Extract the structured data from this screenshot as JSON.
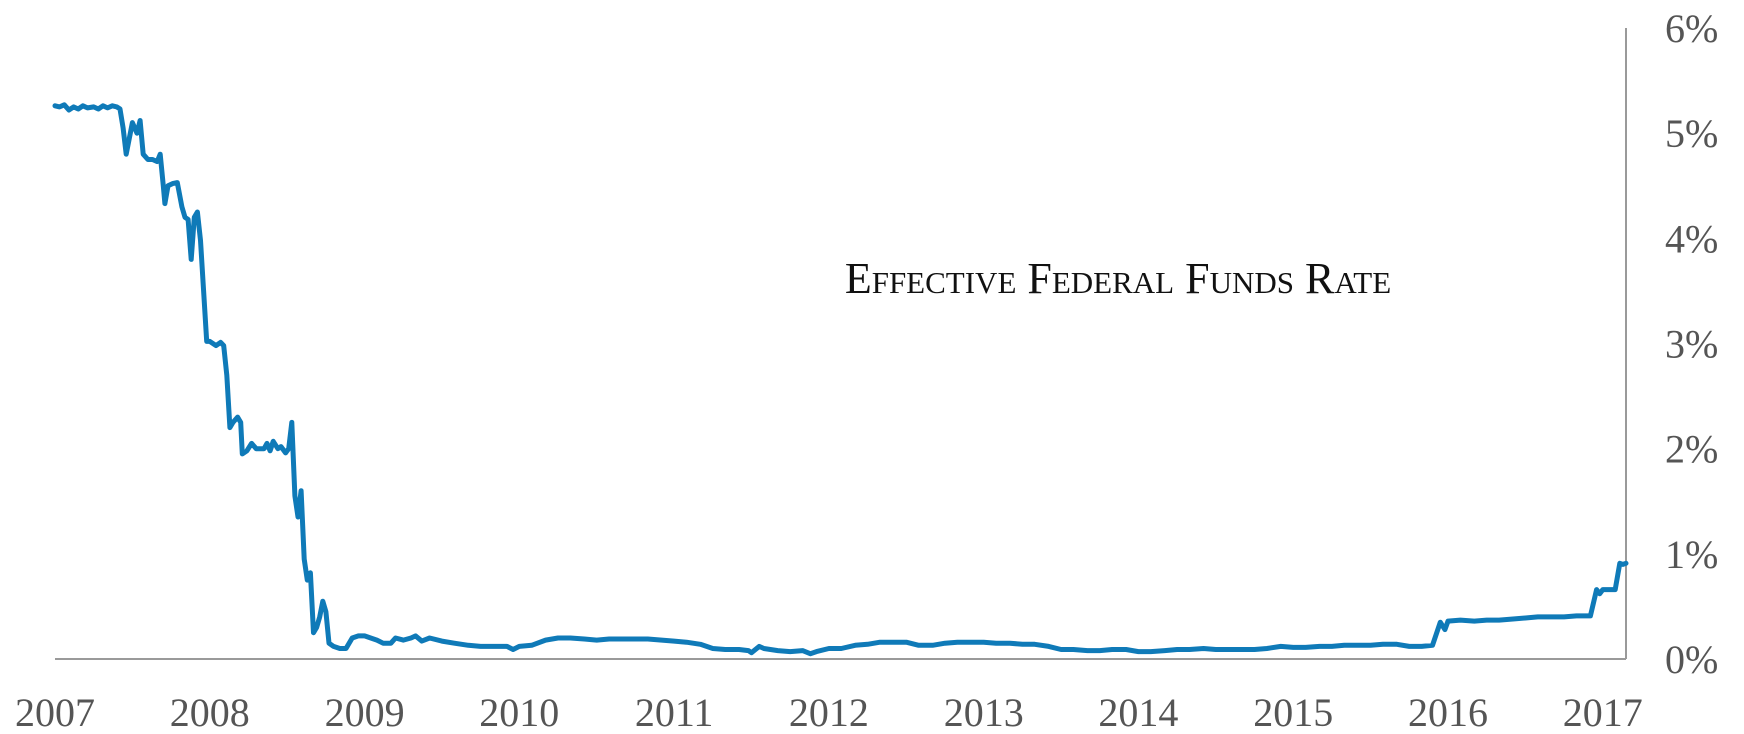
{
  "chart_data": {
    "type": "line",
    "title": "Effective Federal Funds Rate",
    "xlabel": "",
    "ylabel": "",
    "x_ticks": [
      "2007",
      "2008",
      "2009",
      "2010",
      "2011",
      "2012",
      "2013",
      "2014",
      "2015",
      "2016",
      "2017"
    ],
    "y_ticks": [
      "0%",
      "1%",
      "2%",
      "3%",
      "4%",
      "5%",
      "6%"
    ],
    "xlim": [
      2007.0,
      2017.15
    ],
    "ylim": [
      0,
      6
    ],
    "y_axis_side": "right",
    "grid": false,
    "legend": "none",
    "series": [
      {
        "color": "#0f7ab8",
        "points": [
          [
            2007.0,
            5.26
          ],
          [
            2007.03,
            5.25
          ],
          [
            2007.06,
            5.27
          ],
          [
            2007.09,
            5.22
          ],
          [
            2007.12,
            5.25
          ],
          [
            2007.15,
            5.23
          ],
          [
            2007.18,
            5.26
          ],
          [
            2007.21,
            5.24
          ],
          [
            2007.25,
            5.25
          ],
          [
            2007.28,
            5.23
          ],
          [
            2007.31,
            5.26
          ],
          [
            2007.34,
            5.24
          ],
          [
            2007.37,
            5.26
          ],
          [
            2007.4,
            5.25
          ],
          [
            2007.42,
            5.23
          ],
          [
            2007.44,
            5.05
          ],
          [
            2007.46,
            4.8
          ],
          [
            2007.48,
            4.95
          ],
          [
            2007.5,
            5.1
          ],
          [
            2007.53,
            5.0
          ],
          [
            2007.55,
            5.12
          ],
          [
            2007.57,
            4.8
          ],
          [
            2007.6,
            4.75
          ],
          [
            2007.63,
            4.75
          ],
          [
            2007.66,
            4.73
          ],
          [
            2007.68,
            4.8
          ],
          [
            2007.7,
            4.5
          ],
          [
            2007.71,
            4.33
          ],
          [
            2007.73,
            4.5
          ],
          [
            2007.76,
            4.52
          ],
          [
            2007.79,
            4.53
          ],
          [
            2007.82,
            4.3
          ],
          [
            2007.84,
            4.2
          ],
          [
            2007.86,
            4.18
          ],
          [
            2007.88,
            3.8
          ],
          [
            2007.9,
            4.2
          ],
          [
            2007.92,
            4.25
          ],
          [
            2007.94,
            3.98
          ],
          [
            2007.96,
            3.5
          ],
          [
            2007.98,
            3.02
          ],
          [
            2008.0,
            3.02
          ],
          [
            2008.04,
            2.98
          ],
          [
            2008.07,
            3.01
          ],
          [
            2008.09,
            2.98
          ],
          [
            2008.11,
            2.7
          ],
          [
            2008.13,
            2.2
          ],
          [
            2008.15,
            2.25
          ],
          [
            2008.18,
            2.3
          ],
          [
            2008.2,
            2.25
          ],
          [
            2008.21,
            1.95
          ],
          [
            2008.24,
            1.98
          ],
          [
            2008.27,
            2.05
          ],
          [
            2008.3,
            2.0
          ],
          [
            2008.33,
            2.0
          ],
          [
            2008.35,
            2.0
          ],
          [
            2008.37,
            2.05
          ],
          [
            2008.39,
            1.98
          ],
          [
            2008.41,
            2.07
          ],
          [
            2008.44,
            2.0
          ],
          [
            2008.46,
            2.02
          ],
          [
            2008.49,
            1.96
          ],
          [
            2008.51,
            2.0
          ],
          [
            2008.53,
            2.25
          ],
          [
            2008.55,
            1.55
          ],
          [
            2008.57,
            1.35
          ],
          [
            2008.59,
            1.6
          ],
          [
            2008.61,
            0.95
          ],
          [
            2008.63,
            0.75
          ],
          [
            2008.65,
            0.82
          ],
          [
            2008.67,
            0.25
          ],
          [
            2008.69,
            0.3
          ],
          [
            2008.71,
            0.4
          ],
          [
            2008.73,
            0.55
          ],
          [
            2008.75,
            0.45
          ],
          [
            2008.77,
            0.15
          ],
          [
            2008.8,
            0.12
          ],
          [
            2008.84,
            0.1
          ],
          [
            2008.88,
            0.1
          ],
          [
            2008.92,
            0.2
          ],
          [
            2008.96,
            0.22
          ],
          [
            2009.0,
            0.22
          ],
          [
            2009.04,
            0.2
          ],
          [
            2009.08,
            0.18
          ],
          [
            2009.12,
            0.15
          ],
          [
            2009.17,
            0.15
          ],
          [
            2009.2,
            0.2
          ],
          [
            2009.25,
            0.18
          ],
          [
            2009.3,
            0.2
          ],
          [
            2009.33,
            0.22
          ],
          [
            2009.37,
            0.17
          ],
          [
            2009.42,
            0.2
          ],
          [
            2009.5,
            0.17
          ],
          [
            2009.58,
            0.15
          ],
          [
            2009.67,
            0.13
          ],
          [
            2009.75,
            0.12
          ],
          [
            2009.83,
            0.12
          ],
          [
            2009.92,
            0.12
          ],
          [
            2009.96,
            0.09
          ],
          [
            2010.0,
            0.12
          ],
          [
            2010.08,
            0.13
          ],
          [
            2010.17,
            0.18
          ],
          [
            2010.25,
            0.2
          ],
          [
            2010.33,
            0.2
          ],
          [
            2010.42,
            0.19
          ],
          [
            2010.5,
            0.18
          ],
          [
            2010.58,
            0.19
          ],
          [
            2010.67,
            0.19
          ],
          [
            2010.75,
            0.19
          ],
          [
            2010.83,
            0.19
          ],
          [
            2010.92,
            0.18
          ],
          [
            2011.0,
            0.17
          ],
          [
            2011.08,
            0.16
          ],
          [
            2011.17,
            0.14
          ],
          [
            2011.25,
            0.1
          ],
          [
            2011.33,
            0.09
          ],
          [
            2011.42,
            0.09
          ],
          [
            2011.48,
            0.08
          ],
          [
            2011.5,
            0.06
          ],
          [
            2011.55,
            0.12
          ],
          [
            2011.58,
            0.1
          ],
          [
            2011.67,
            0.08
          ],
          [
            2011.75,
            0.07
          ],
          [
            2011.83,
            0.08
          ],
          [
            2011.88,
            0.05
          ],
          [
            2011.92,
            0.07
          ],
          [
            2012.0,
            0.1
          ],
          [
            2012.08,
            0.1
          ],
          [
            2012.17,
            0.13
          ],
          [
            2012.25,
            0.14
          ],
          [
            2012.33,
            0.16
          ],
          [
            2012.42,
            0.16
          ],
          [
            2012.5,
            0.16
          ],
          [
            2012.58,
            0.13
          ],
          [
            2012.67,
            0.13
          ],
          [
            2012.75,
            0.15
          ],
          [
            2012.83,
            0.16
          ],
          [
            2012.92,
            0.16
          ],
          [
            2013.0,
            0.16
          ],
          [
            2013.08,
            0.15
          ],
          [
            2013.17,
            0.15
          ],
          [
            2013.25,
            0.14
          ],
          [
            2013.33,
            0.14
          ],
          [
            2013.42,
            0.12
          ],
          [
            2013.5,
            0.09
          ],
          [
            2013.58,
            0.09
          ],
          [
            2013.67,
            0.08
          ],
          [
            2013.75,
            0.08
          ],
          [
            2013.83,
            0.09
          ],
          [
            2013.92,
            0.09
          ],
          [
            2014.0,
            0.07
          ],
          [
            2014.08,
            0.07
          ],
          [
            2014.17,
            0.08
          ],
          [
            2014.25,
            0.09
          ],
          [
            2014.33,
            0.09
          ],
          [
            2014.42,
            0.1
          ],
          [
            2014.5,
            0.09
          ],
          [
            2014.58,
            0.09
          ],
          [
            2014.67,
            0.09
          ],
          [
            2014.75,
            0.09
          ],
          [
            2014.83,
            0.1
          ],
          [
            2014.92,
            0.12
          ],
          [
            2015.0,
            0.11
          ],
          [
            2015.08,
            0.11
          ],
          [
            2015.17,
            0.12
          ],
          [
            2015.25,
            0.12
          ],
          [
            2015.33,
            0.13
          ],
          [
            2015.42,
            0.13
          ],
          [
            2015.5,
            0.13
          ],
          [
            2015.58,
            0.14
          ],
          [
            2015.67,
            0.14
          ],
          [
            2015.75,
            0.12
          ],
          [
            2015.83,
            0.12
          ],
          [
            2015.9,
            0.13
          ],
          [
            2015.95,
            0.35
          ],
          [
            2015.98,
            0.28
          ],
          [
            2016.0,
            0.36
          ],
          [
            2016.08,
            0.37
          ],
          [
            2016.17,
            0.36
          ],
          [
            2016.25,
            0.37
          ],
          [
            2016.33,
            0.37
          ],
          [
            2016.42,
            0.38
          ],
          [
            2016.5,
            0.39
          ],
          [
            2016.58,
            0.4
          ],
          [
            2016.67,
            0.4
          ],
          [
            2016.75,
            0.4
          ],
          [
            2016.83,
            0.41
          ],
          [
            2016.92,
            0.41
          ],
          [
            2016.96,
            0.66
          ],
          [
            2016.98,
            0.62
          ],
          [
            2017.0,
            0.66
          ],
          [
            2017.04,
            0.66
          ],
          [
            2017.08,
            0.66
          ],
          [
            2017.11,
            0.91
          ],
          [
            2017.13,
            0.9
          ],
          [
            2017.15,
            0.91
          ]
        ]
      }
    ]
  }
}
